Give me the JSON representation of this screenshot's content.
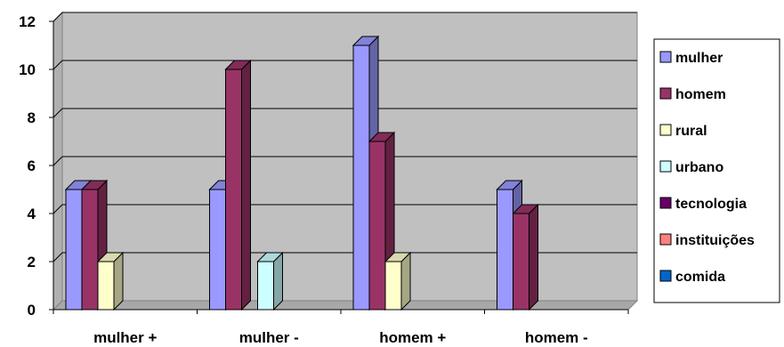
{
  "chart_data": {
    "type": "bar",
    "categories": [
      "mulher +",
      "mulher -",
      "homem +",
      "homem -"
    ],
    "series": [
      {
        "name": "mulher",
        "color": "#9999ff",
        "values": [
          5,
          5,
          11,
          5
        ]
      },
      {
        "name": "homem",
        "color": "#993366",
        "values": [
          5,
          10,
          7,
          4
        ]
      },
      {
        "name": "rural",
        "color": "#ffffcc",
        "values": [
          2,
          0,
          2,
          0
        ]
      },
      {
        "name": "urbano",
        "color": "#ccffff",
        "values": [
          0,
          2,
          0,
          0
        ]
      },
      {
        "name": "tecnologia",
        "color": "#660066",
        "values": [
          0,
          0,
          0,
          0
        ]
      },
      {
        "name": "instituições",
        "color": "#ff8080",
        "values": [
          0,
          0,
          0,
          0
        ]
      },
      {
        "name": "comida",
        "color": "#0066cc",
        "values": [
          0,
          0,
          0,
          0
        ]
      }
    ],
    "yticks": [
      "0",
      "2",
      "4",
      "6",
      "8",
      "10",
      "12"
    ],
    "ylim": [
      0,
      12
    ],
    "grid": true,
    "legend_position": "right",
    "style": "3d-clustered-column"
  }
}
